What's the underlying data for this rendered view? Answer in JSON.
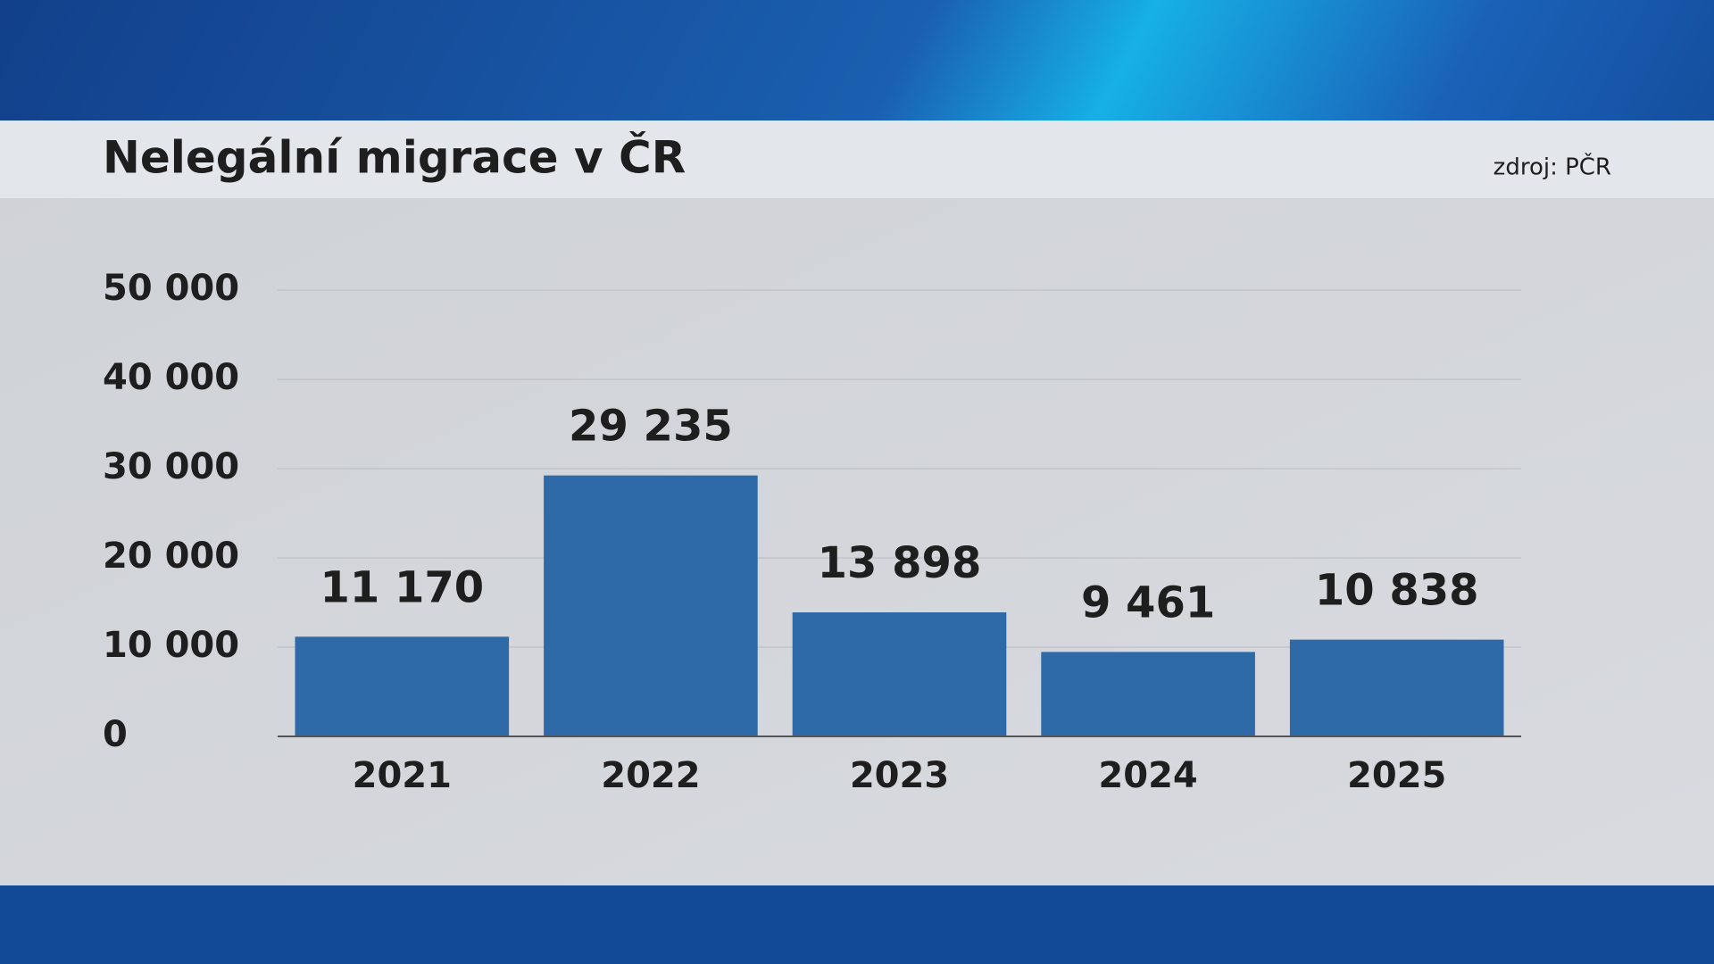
{
  "chart_data": {
    "type": "bar",
    "title": "Nelegální migrace v ČR",
    "source": "zdroj: PČR",
    "categories": [
      "2021",
      "2022",
      "2023",
      "2024",
      "2025"
    ],
    "values": [
      11170,
      29235,
      13898,
      9461,
      10838
    ],
    "value_labels": [
      "11 170",
      "29 235",
      "13 898",
      "9 461",
      "10 838"
    ],
    "color": "#2f6aa8",
    "ylim": [
      0,
      50000
    ],
    "yticks": [
      0,
      {
        "value": 10000,
        "label": "10 000"
      },
      {
        "value": 20000,
        "label": "20 000"
      },
      {
        "value": 30000,
        "label": "30 000"
      },
      {
        "value": 40000,
        "label": "40 000"
      },
      {
        "value": 50000,
        "label": "50 000"
      }
    ],
    "grid": true
  }
}
